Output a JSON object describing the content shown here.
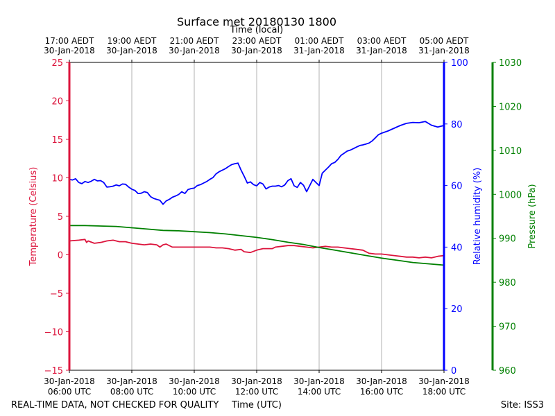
{
  "chart_data": {
    "type": "line",
    "title": "Surface met 20180130 1800",
    "top_axis_label": "Time (local)",
    "xlabel": "Time (UTC)",
    "footer_left": "REAL-TIME DATA, NOT CHECKED FOR QUALITY",
    "footer_right": "Site: ISS3",
    "x_unit": "hours after 30-Jan-2018 06:00 UTC",
    "x_range": [
      0,
      12
    ],
    "utc_ticks": [
      {
        "x": 0,
        "date": "30-Jan-2018",
        "time": "06:00 UTC"
      },
      {
        "x": 2,
        "date": "30-Jan-2018",
        "time": "08:00 UTC"
      },
      {
        "x": 4,
        "date": "30-Jan-2018",
        "time": "10:00 UTC"
      },
      {
        "x": 6,
        "date": "30-Jan-2018",
        "time": "12:00 UTC"
      },
      {
        "x": 8,
        "date": "30-Jan-2018",
        "time": "14:00 UTC"
      },
      {
        "x": 10,
        "date": "30-Jan-2018",
        "time": "16:00 UTC"
      },
      {
        "x": 12,
        "date": "30-Jan-2018",
        "time": "18:00 UTC"
      }
    ],
    "local_ticks": [
      {
        "x": 0,
        "time": "17:00 AEDT",
        "date": "30-Jan-2018"
      },
      {
        "x": 2,
        "time": "19:00 AEDT",
        "date": "30-Jan-2018"
      },
      {
        "x": 4,
        "time": "21:00 AEDT",
        "date": "30-Jan-2018"
      },
      {
        "x": 6,
        "time": "23:00 AEDT",
        "date": "30-Jan-2018"
      },
      {
        "x": 8,
        "time": "01:00 AEDT",
        "date": "31-Jan-2018"
      },
      {
        "x": 10,
        "time": "03:00 AEDT",
        "date": "31-Jan-2018"
      },
      {
        "x": 12,
        "time": "05:00 AEDT",
        "date": "31-Jan-2018"
      }
    ],
    "grid": "vertical",
    "axes": {
      "temperature": {
        "label": "Temperature (Celsius)",
        "range": [
          -15,
          25
        ],
        "ticks": [
          -15,
          -10,
          -5,
          0,
          5,
          10,
          15,
          20,
          25
        ],
        "tick_labels": [
          "−15",
          "−10",
          "−5",
          "0",
          "5",
          "10",
          "15",
          "20",
          "25"
        ],
        "color": "#dc143c",
        "side": "left"
      },
      "humidity": {
        "label": "Relative humidity (%)",
        "range": [
          0,
          100
        ],
        "ticks": [
          0,
          20,
          40,
          60,
          80,
          100
        ],
        "tick_labels": [
          "0",
          "20",
          "40",
          "60",
          "80",
          "100"
        ],
        "color": "#0000ff",
        "side": "right"
      },
      "pressure": {
        "label": "Pressure (hPa)",
        "range": [
          960,
          1030
        ],
        "ticks": [
          960,
          970,
          980,
          990,
          1000,
          1010,
          1020,
          1030
        ],
        "tick_labels": [
          "960",
          "970",
          "980",
          "990",
          "1000",
          "1010",
          "1020",
          "1030"
        ],
        "color": "#008000",
        "side": "far-right"
      }
    },
    "series": [
      {
        "name": "Temperature",
        "axis": "temperature",
        "color": "#dc143c",
        "x": [
          0,
          0.3,
          0.5,
          0.55,
          0.6,
          0.8,
          1.0,
          1.2,
          1.4,
          1.6,
          1.8,
          2.0,
          2.2,
          2.4,
          2.6,
          2.8,
          2.9,
          3.0,
          3.1,
          3.3,
          3.5,
          3.7,
          3.9,
          4.1,
          4.3,
          4.5,
          4.7,
          4.9,
          5.1,
          5.3,
          5.5,
          5.6,
          5.8,
          6.0,
          6.2,
          6.4,
          6.5,
          6.6,
          6.8,
          7.0,
          7.2,
          7.4,
          7.6,
          7.8,
          8.0,
          8.2,
          8.4,
          8.6,
          8.8,
          9.0,
          9.2,
          9.4,
          9.6,
          9.8,
          10.0,
          10.2,
          10.4,
          10.6,
          10.8,
          11.0,
          11.2,
          11.4,
          11.6,
          11.8,
          12.0
        ],
        "values": [
          1.8,
          1.9,
          2.0,
          1.6,
          1.8,
          1.5,
          1.6,
          1.8,
          1.9,
          1.7,
          1.7,
          1.5,
          1.4,
          1.3,
          1.4,
          1.3,
          1.0,
          1.3,
          1.4,
          1.0,
          1.0,
          1.0,
          1.0,
          1.0,
          1.0,
          1.0,
          0.9,
          0.9,
          0.8,
          0.6,
          0.7,
          0.4,
          0.3,
          0.6,
          0.8,
          0.8,
          0.8,
          1.0,
          1.1,
          1.2,
          1.2,
          1.1,
          1.0,
          0.9,
          1.0,
          1.1,
          1.0,
          1.0,
          0.9,
          0.8,
          0.7,
          0.6,
          0.2,
          0.1,
          0.1,
          0.0,
          -0.1,
          -0.2,
          -0.3,
          -0.3,
          -0.4,
          -0.3,
          -0.4,
          -0.2,
          -0.1
        ]
      },
      {
        "name": "Relative humidity",
        "axis": "humidity",
        "color": "#0000ff",
        "x": [
          0,
          0.1,
          0.2,
          0.3,
          0.4,
          0.5,
          0.6,
          0.7,
          0.8,
          0.9,
          1.0,
          1.1,
          1.2,
          1.3,
          1.4,
          1.5,
          1.6,
          1.7,
          1.8,
          1.9,
          2.0,
          2.1,
          2.2,
          2.3,
          2.4,
          2.5,
          2.6,
          2.7,
          2.8,
          2.9,
          3.0,
          3.1,
          3.2,
          3.3,
          3.4,
          3.5,
          3.6,
          3.7,
          3.8,
          3.9,
          4.0,
          4.1,
          4.2,
          4.3,
          4.4,
          4.5,
          4.6,
          4.7,
          4.8,
          4.9,
          5.0,
          5.1,
          5.2,
          5.3,
          5.4,
          5.5,
          5.6,
          5.7,
          5.8,
          5.9,
          6.0,
          6.1,
          6.2,
          6.3,
          6.4,
          6.5,
          6.6,
          6.7,
          6.8,
          6.9,
          7.0,
          7.1,
          7.2,
          7.3,
          7.4,
          7.5,
          7.6,
          7.7,
          7.8,
          7.9,
          8.0,
          8.1,
          8.2,
          8.3,
          8.4,
          8.5,
          8.6,
          8.7,
          8.8,
          8.9,
          9.0,
          9.1,
          9.2,
          9.3,
          9.4,
          9.5,
          9.6,
          9.7,
          9.8,
          9.9,
          10.0,
          10.2,
          10.4,
          10.6,
          10.8,
          11.0,
          11.2,
          11.4,
          11.6,
          11.8,
          12.0
        ],
        "values": [
          62.0,
          61.8,
          62.2,
          61.0,
          60.6,
          61.3,
          61.0,
          61.4,
          62.0,
          61.5,
          61.6,
          61.0,
          59.5,
          59.6,
          59.8,
          60.2,
          59.9,
          60.5,
          60.4,
          59.5,
          58.8,
          58.4,
          57.4,
          57.5,
          58.0,
          57.7,
          56.4,
          55.8,
          55.5,
          55.2,
          53.9,
          55.0,
          55.5,
          56.2,
          56.6,
          57.1,
          58.0,
          57.4,
          58.7,
          59.0,
          59.2,
          60.0,
          60.3,
          60.8,
          61.3,
          62.0,
          62.6,
          63.8,
          64.5,
          65.0,
          65.5,
          66.2,
          66.8,
          67.1,
          67.3,
          65.0,
          63.0,
          60.8,
          61.2,
          60.3,
          59.9,
          61.0,
          60.5,
          58.9,
          59.5,
          59.8,
          59.8,
          60.0,
          59.6,
          60.2,
          61.6,
          62.2,
          59.9,
          59.4,
          61.0,
          60.1,
          58.0,
          60.0,
          62.0,
          61.0,
          60.0,
          64.0,
          65.0,
          66.0,
          67.1,
          67.5,
          68.5,
          69.8,
          70.5,
          71.2,
          71.5,
          72.0,
          72.5,
          73.0,
          73.2,
          73.5,
          73.8,
          74.5,
          75.5,
          76.5,
          77.0,
          77.7,
          78.6,
          79.5,
          80.2,
          80.5,
          80.4,
          80.8,
          79.6,
          79.0,
          79.5
        ]
      },
      {
        "name": "Pressure",
        "axis": "pressure",
        "color": "#008000",
        "x": [
          0,
          0.5,
          1.0,
          1.5,
          2.0,
          2.5,
          3.0,
          3.5,
          4.0,
          4.5,
          5.0,
          5.5,
          6.0,
          6.5,
          7.0,
          7.5,
          8.0,
          8.5,
          9.0,
          9.5,
          10.0,
          10.5,
          11.0,
          11.5,
          12.0
        ],
        "values": [
          992.9,
          992.9,
          992.8,
          992.7,
          992.4,
          992.1,
          991.8,
          991.7,
          991.5,
          991.3,
          991.0,
          990.6,
          990.2,
          989.7,
          989.1,
          988.6,
          987.9,
          987.3,
          986.7,
          986.1,
          985.5,
          985.0,
          984.5,
          984.2,
          983.9
        ]
      }
    ]
  }
}
